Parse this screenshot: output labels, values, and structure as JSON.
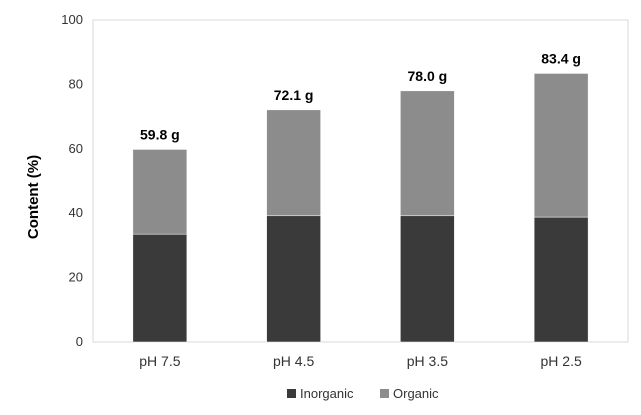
{
  "chart_data": {
    "type": "bar",
    "stacked": true,
    "title": "",
    "xlabel": "",
    "ylabel": "Content (%)",
    "ylim": [
      0,
      100
    ],
    "yticks": [
      "0",
      "20",
      "40",
      "60",
      "80",
      "100"
    ],
    "categories": [
      "pH 7.5",
      "pH 4.5",
      "pH 3.5",
      "pH 2.5"
    ],
    "series": [
      {
        "name": "Inorganic",
        "values": [
          33.5,
          39.2,
          39.2,
          38.8
        ],
        "color": "#3a3a3a"
      },
      {
        "name": "Organic",
        "values": [
          26.3,
          32.9,
          38.8,
          44.6
        ],
        "color": "#8c8c8c"
      }
    ],
    "totals": [
      "59.8 g",
      "72.1 g",
      "78.0 g",
      "83.4 g"
    ],
    "legend_position": "bottom"
  }
}
